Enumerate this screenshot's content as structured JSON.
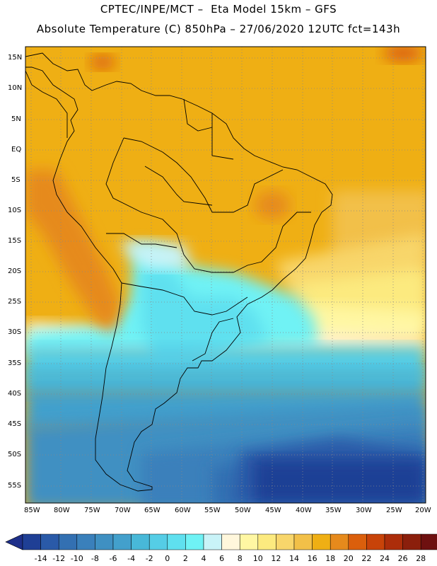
{
  "header": {
    "line1": "CPTEC/INPE/MCT –  Eta Model 15km – GFS",
    "line2": "Absolute Temperature (C) 850hPa – 27/06/2020 12UTC fct=143h"
  },
  "axes": {
    "lat_labels": [
      "15N",
      "10N",
      "5N",
      "EQ",
      "5S",
      "10S",
      "15S",
      "20S",
      "25S",
      "30S",
      "35S",
      "40S",
      "45S",
      "50S",
      "55S"
    ],
    "lon_labels": [
      "85W",
      "80W",
      "75W",
      "70W",
      "65W",
      "60W",
      "55W",
      "50W",
      "45W",
      "40W",
      "35W",
      "30W",
      "25W",
      "20W"
    ]
  },
  "colorbar": {
    "labels": [
      "-14",
      "-12",
      "-10",
      "-8",
      "-6",
      "-4",
      "-2",
      "0",
      "2",
      "4",
      "6",
      "8",
      "10",
      "12",
      "14",
      "16",
      "18",
      "20",
      "22",
      "24",
      "26",
      "28"
    ],
    "colors": [
      "#1f3f95",
      "#2a5aa8",
      "#3370b2",
      "#3a80bb",
      "#3f90c2",
      "#43a0cc",
      "#48b8d8",
      "#55cde6",
      "#5fe0ef",
      "#6ff2f5",
      "#c9f3f8",
      "#fff7dc",
      "#fff7a3",
      "#fcea7f",
      "#f8d66b",
      "#f2c048",
      "#efaf14",
      "#e68a1c",
      "#db5f0c",
      "#c84309",
      "#ac2d0a",
      "#8b1f0c",
      "#6e1010"
    ],
    "under_color": "#1e2f8a",
    "over_color": "#6e0a1e"
  },
  "legend_units": "C"
}
